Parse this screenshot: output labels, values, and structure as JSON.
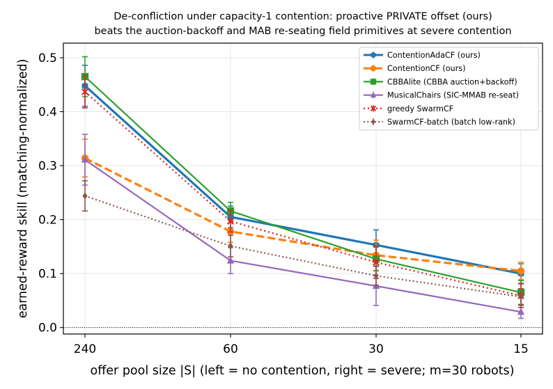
{
  "chart_data": {
    "type": "line",
    "title_lines": [
      "De-confliction under capacity-1 contention: proactive PRIVATE offset (ours)",
      "beats the auction-backoff and MAB re-seating field primitives at severe contention"
    ],
    "xlabel": "offer pool size |S| (left = no contention, right = severe; m=30 robots)",
    "ylabel": "earned-reward skill (matching-normalized)",
    "categories": [
      "240",
      "60",
      "30",
      "15"
    ],
    "ylim": [
      -0.012,
      0.527
    ],
    "yticks": [
      0.0,
      0.1,
      0.2,
      0.3,
      0.4,
      0.5
    ],
    "ytick_labels": [
      "0.0",
      "0.1",
      "0.2",
      "0.3",
      "0.4",
      "0.5"
    ],
    "grid": true,
    "zero_line": true,
    "legend_position": "top-right",
    "series": [
      {
        "name": "ContentionAdaCF (ours)",
        "color": "#1f77b4",
        "values": [
          0.448,
          0.205,
          0.153,
          0.1
        ],
        "errors": [
          0.038,
          0.02,
          0.028,
          0.018
        ],
        "dash": "",
        "width": 3.2,
        "marker": "hexagon"
      },
      {
        "name": "ContentionCF (ours)",
        "color": "#ff7f0e",
        "values": [
          0.314,
          0.178,
          0.134,
          0.105
        ],
        "errors": [
          0.035,
          0.02,
          0.028,
          0.016
        ],
        "dash": "11,5",
        "width": 3.2,
        "marker": "circle"
      },
      {
        "name": "CBBAlite (CBBA auction+backoff)",
        "color": "#2ca02c",
        "values": [
          0.465,
          0.216,
          0.127,
          0.065
        ],
        "errors": [
          0.037,
          0.016,
          0.022,
          0.022
        ],
        "dash": "",
        "width": 2.2,
        "marker": "square"
      },
      {
        "name": "MusicalChairs (SIC-MMAB re-seat)",
        "color": "#9467bd",
        "values": [
          0.311,
          0.124,
          0.077,
          0.029
        ],
        "errors": [
          0.047,
          0.024,
          0.036,
          0.012
        ],
        "dash": "",
        "width": 2.2,
        "marker": "triangle"
      },
      {
        "name": "greedy SwarmCF",
        "color": "#d62728",
        "values": [
          0.437,
          0.197,
          0.121,
          0.059
        ],
        "errors": [
          0.03,
          0.02,
          0.03,
          0.022
        ],
        "dash": "2,4",
        "width": 2.4,
        "marker": "x"
      },
      {
        "name": "SwarmCF-batch (batch low-rank)",
        "color": "#8c564b",
        "values": [
          0.244,
          0.151,
          0.096,
          0.057
        ],
        "errors": [
          0.028,
          0.02,
          0.018,
          0.015
        ],
        "dash": "2,3.3",
        "width": 2.2,
        "marker": "diamond"
      }
    ]
  }
}
